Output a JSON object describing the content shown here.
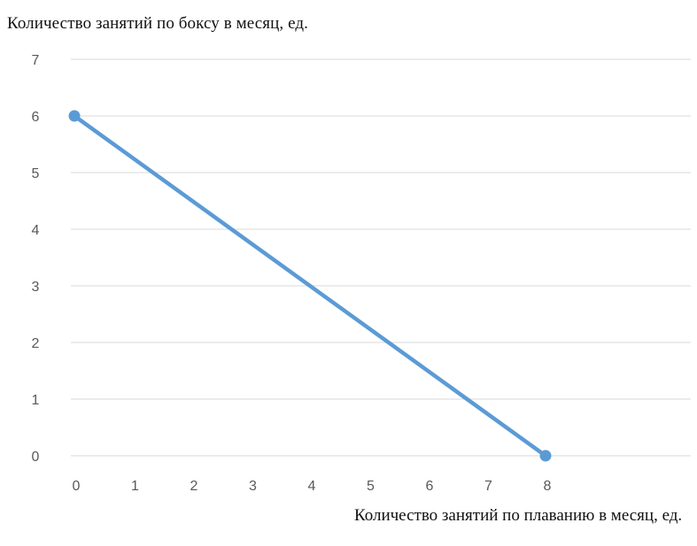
{
  "chart_data": {
    "type": "line",
    "title": "",
    "ylabel": "Количество занятий по боксу в месяц, ед.",
    "xlabel": "Количество занятий по плаванию в месяц, ед.",
    "x_ticks": [
      "0",
      "1",
      "2",
      "3",
      "4",
      "5",
      "6",
      "7",
      "8"
    ],
    "y_ticks": [
      "0",
      "1",
      "2",
      "3",
      "4",
      "5",
      "6",
      "7"
    ],
    "xlim": [
      0,
      10
    ],
    "ylim": [
      0,
      7
    ],
    "grid": true,
    "series": [
      {
        "color": "#5b9bd5",
        "points": [
          {
            "x": 0,
            "y": 6
          },
          {
            "x": 8,
            "y": 0
          }
        ]
      }
    ]
  }
}
